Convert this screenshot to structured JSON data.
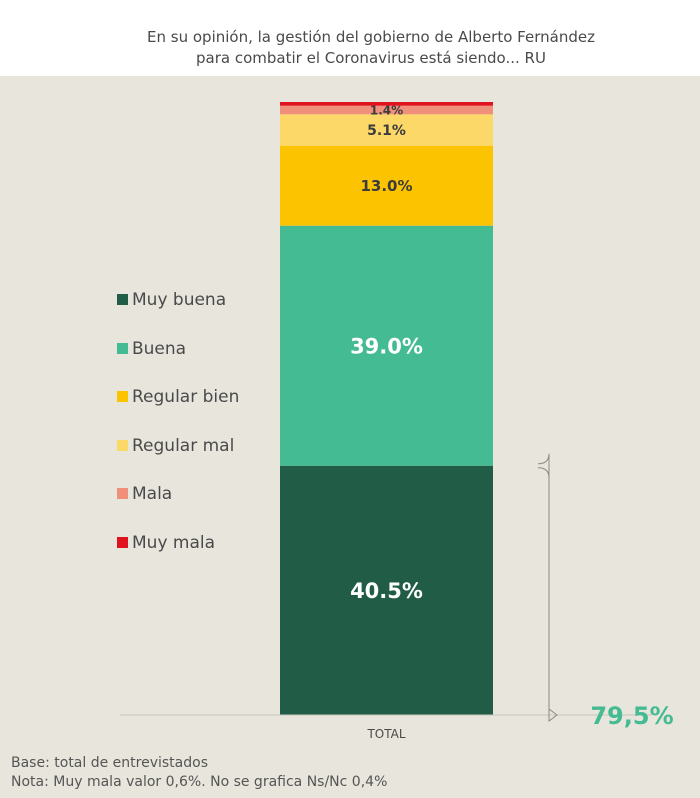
{
  "title_lines": [
    "En su opinión, la gestión del gobierno de Alberto Fernández",
    "para combatir el Coronavirus está siendo... RU"
  ],
  "chart_data": {
    "type": "bar",
    "stacked": true,
    "categories": [
      "TOTAL"
    ],
    "series": [
      {
        "name": "Muy buena",
        "values": [
          40.5
        ],
        "label": "40.5%",
        "color": "#215c47"
      },
      {
        "name": "Buena",
        "values": [
          39.0
        ],
        "label": "39.0%",
        "color": "#45bb93"
      },
      {
        "name": "Regular bien",
        "values": [
          13.0
        ],
        "label": "13.0%",
        "color": "#fcc300"
      },
      {
        "name": "Regular mal",
        "values": [
          5.1
        ],
        "label": "5.1%",
        "color": "#fbd868"
      },
      {
        "name": "Mala",
        "values": [
          1.4
        ],
        "label": "1.4%",
        "color": "#f0907a"
      },
      {
        "name": "Muy mala",
        "values": [
          0.6
        ],
        "label": "",
        "color": "#e0121f"
      }
    ],
    "bracket_total": {
      "label": "79,5%",
      "series": [
        "Muy buena",
        "Buena"
      ],
      "color": "#45bb93"
    },
    "xlabel": "",
    "ylabel": "",
    "legend_position": "left",
    "grid": false
  },
  "notes": [
    "Base: total de entrevistados",
    "Nota: Muy mala valor 0,6%. No se grafica Ns/Nc 0,4%"
  ]
}
